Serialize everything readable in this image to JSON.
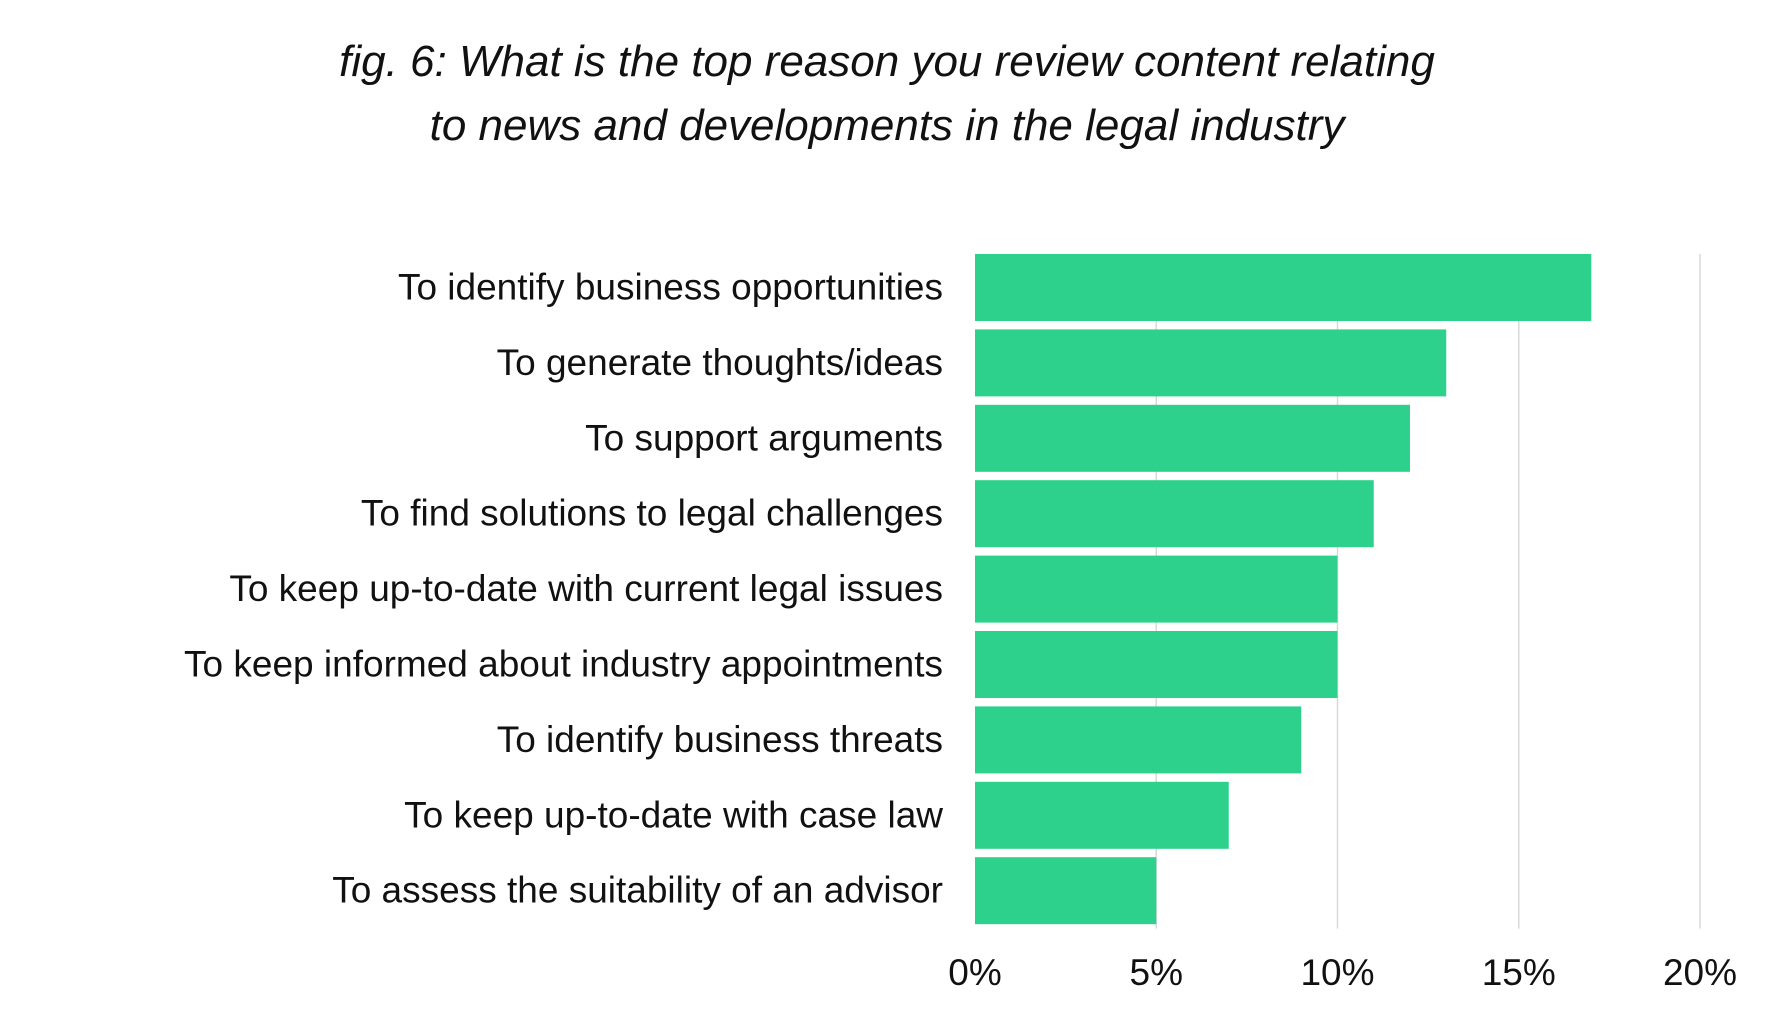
{
  "title": {
    "line1": "fig. 6:  What is the top reason you review content relating",
    "line2": "to news and developments in the legal industry"
  },
  "chart_data": {
    "type": "bar",
    "orientation": "horizontal",
    "title": "fig. 6:  What is the top reason you review content relating to news and developments in the legal industry",
    "categories": [
      "To identify business opportunities",
      "To generate thoughts/ideas",
      "To support arguments",
      "To find solutions to legal challenges",
      "To keep up-to-date with current legal issues",
      "To keep informed about industry appointments",
      "To identify business threats",
      "To keep up-to-date with case law",
      "To assess the suitability of an advisor"
    ],
    "values": [
      17,
      13,
      12,
      11,
      10,
      10,
      9,
      7,
      5
    ],
    "value_unit": "%",
    "xlim": [
      0,
      20
    ],
    "xticks": [
      0,
      5,
      10,
      15,
      20
    ],
    "xtick_labels": [
      "0%",
      "5%",
      "10%",
      "15%",
      "20%"
    ],
    "grid": "vertical",
    "legend": "none",
    "colors": {
      "bar": "#2ed18b",
      "grid": "#d9d9d9",
      "text": "#111111"
    }
  }
}
